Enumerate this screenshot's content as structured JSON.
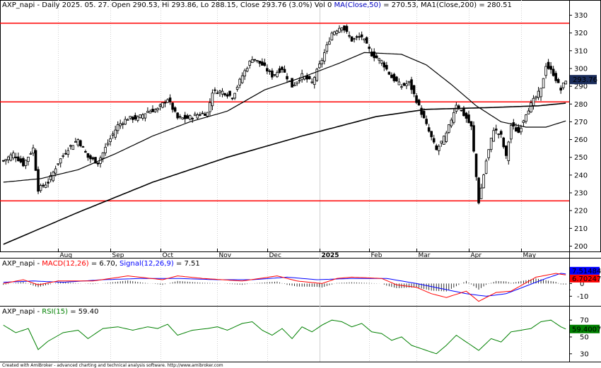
{
  "chart_data": [
    {
      "type": "candlestick",
      "header": {
        "symbol": "AXP_napi",
        "interval": "Daily",
        "date": "2025. 05. 27.",
        "open_label": "Open",
        "open": "290.53",
        "hi_label": "Hi",
        "hi": "293.86",
        "lo_label": "Lo",
        "lo": "288.15",
        "close_label": "Close",
        "close": "293.76",
        "change": "(3.0%)",
        "vol_label": "Vol",
        "vol": "0",
        "ma1_label": "MA(Close,50)",
        "ma1_value": "270.53",
        "ma2_label": "MA1(Close,200)",
        "ma2_value": "280.51"
      },
      "ylim": [
        197,
        333
      ],
      "y_ticks": [
        "200",
        "210",
        "220",
        "230",
        "240",
        "250",
        "260",
        "270",
        "280",
        "290",
        "300",
        "310",
        "320",
        "330"
      ],
      "last_price_label": "293.76",
      "horizontal_lines": [
        325.5,
        281.2,
        225.5
      ],
      "months": [
        {
          "label": "Aug",
          "bar": 22
        },
        {
          "label": "Sep",
          "bar": 43
        },
        {
          "label": "Oct",
          "bar": 63
        },
        {
          "label": "Nov",
          "bar": 86
        },
        {
          "label": "Dec",
          "bar": 106
        },
        {
          "label": "2025",
          "bar": 127,
          "bold": true
        },
        {
          "label": "Feb",
          "bar": 147
        },
        {
          "label": "Mar",
          "bar": 166
        },
        {
          "label": "Apr",
          "bar": 187
        },
        {
          "label": "May",
          "bar": 208
        }
      ],
      "close_anchors": [
        [
          0,
          248
        ],
        [
          4,
          252
        ],
        [
          8,
          246
        ],
        [
          12,
          255
        ],
        [
          14,
          232
        ],
        [
          18,
          236
        ],
        [
          22,
          247
        ],
        [
          26,
          255
        ],
        [
          30,
          260
        ],
        [
          34,
          250
        ],
        [
          38,
          247
        ],
        [
          42,
          258
        ],
        [
          46,
          268
        ],
        [
          50,
          272
        ],
        [
          54,
          272
        ],
        [
          58,
          276
        ],
        [
          62,
          277
        ],
        [
          66,
          283
        ],
        [
          70,
          272
        ],
        [
          74,
          272
        ],
        [
          78,
          274
        ],
        [
          82,
          275
        ],
        [
          84,
          287
        ],
        [
          88,
          287
        ],
        [
          92,
          284
        ],
        [
          96,
          296
        ],
        [
          100,
          306
        ],
        [
          104,
          302
        ],
        [
          108,
          296
        ],
        [
          112,
          300
        ],
        [
          116,
          290
        ],
        [
          120,
          296
        ],
        [
          124,
          292
        ],
        [
          128,
          305
        ],
        [
          132,
          320
        ],
        [
          136,
          324
        ],
        [
          140,
          316
        ],
        [
          144,
          318
        ],
        [
          148,
          308
        ],
        [
          152,
          304
        ],
        [
          156,
          295
        ],
        [
          160,
          290
        ],
        [
          163,
          292
        ],
        [
          166,
          282
        ],
        [
          170,
          268
        ],
        [
          174,
          254
        ],
        [
          178,
          263
        ],
        [
          182,
          280
        ],
        [
          186,
          272
        ],
        [
          188,
          267
        ],
        [
          191,
          225
        ],
        [
          194,
          248
        ],
        [
          197,
          266
        ],
        [
          200,
          262
        ],
        [
          202,
          250
        ],
        [
          204,
          268
        ],
        [
          207,
          264
        ],
        [
          210,
          275
        ],
        [
          213,
          282
        ],
        [
          216,
          288
        ],
        [
          218,
          302
        ],
        [
          221,
          297
        ],
        [
          224,
          288
        ],
        [
          226,
          293.76
        ]
      ],
      "ma50": [
        [
          0,
          236
        ],
        [
          15,
          238
        ],
        [
          30,
          243
        ],
        [
          45,
          252
        ],
        [
          60,
          262
        ],
        [
          75,
          270
        ],
        [
          90,
          276
        ],
        [
          105,
          288
        ],
        [
          120,
          295
        ],
        [
          135,
          303
        ],
        [
          145,
          309
        ],
        [
          160,
          308
        ],
        [
          170,
          302
        ],
        [
          180,
          291
        ],
        [
          190,
          279
        ],
        [
          200,
          270
        ],
        [
          210,
          267
        ],
        [
          218,
          267
        ],
        [
          226,
          270.5
        ]
      ],
      "ma200": [
        [
          0,
          201
        ],
        [
          30,
          219
        ],
        [
          60,
          236
        ],
        [
          90,
          250
        ],
        [
          120,
          262
        ],
        [
          150,
          273
        ],
        [
          170,
          277
        ],
        [
          195,
          278
        ],
        [
          215,
          279
        ],
        [
          226,
          280.5
        ]
      ]
    },
    {
      "type": "line",
      "header": {
        "symbol": "AXP_napi",
        "macd_label": "MACD(12,26)",
        "macd_value": "6.70",
        "signal_label": "Signal(12,26,9)",
        "signal_value": "7.51"
      },
      "ylim": [
        -17,
        13
      ],
      "y_ticks": [
        "10",
        "0",
        "-10"
      ],
      "tick_values": [
        10,
        5,
        0,
        -5,
        -10
      ],
      "last_labels": {
        "signal": "7.51484",
        "macd": "6.70247"
      },
      "series": [
        {
          "name": "MACD(12,26)",
          "color": "#ff0000",
          "anchors": [
            [
              0,
              0
            ],
            [
              8,
              3
            ],
            [
              14,
              -1
            ],
            [
              22,
              2
            ],
            [
              36,
              2
            ],
            [
              50,
              6
            ],
            [
              64,
              3
            ],
            [
              70,
              6
            ],
            [
              80,
              4
            ],
            [
              96,
              2
            ],
            [
              110,
              6
            ],
            [
              118,
              2
            ],
            [
              128,
              0
            ],
            [
              134,
              4
            ],
            [
              140,
              5
            ],
            [
              152,
              4
            ],
            [
              158,
              -1
            ],
            [
              166,
              -3
            ],
            [
              172,
              -8
            ],
            [
              178,
              -11
            ],
            [
              186,
              -6
            ],
            [
              191,
              -14
            ],
            [
              198,
              -7
            ],
            [
              204,
              -6
            ],
            [
              214,
              5
            ],
            [
              222,
              8
            ],
            [
              226,
              6.7
            ]
          ]
        },
        {
          "name": "Signal(12,26,9)",
          "color": "#0000ff",
          "anchors": [
            [
              0,
              1
            ],
            [
              12,
              2
            ],
            [
              24,
              1
            ],
            [
              40,
              3
            ],
            [
              56,
              4
            ],
            [
              70,
              4
            ],
            [
              86,
              3
            ],
            [
              100,
              3
            ],
            [
              114,
              5
            ],
            [
              126,
              3
            ],
            [
              140,
              4
            ],
            [
              154,
              4
            ],
            [
              166,
              0
            ],
            [
              176,
              -4
            ],
            [
              186,
              -8
            ],
            [
              194,
              -10
            ],
            [
              202,
              -8
            ],
            [
              210,
              -2
            ],
            [
              218,
              4
            ],
            [
              224,
              8
            ],
            [
              226,
              7.5
            ]
          ]
        }
      ]
    },
    {
      "type": "line",
      "header": {
        "symbol": "AXP_napi",
        "rsi_label": "RSI(15)",
        "rsi_value": "59.40"
      },
      "ylim": [
        24,
        76
      ],
      "y_ticks": [
        "70",
        "50",
        "30"
      ],
      "last_label": "59.4007",
      "series": [
        {
          "name": "RSI(15)",
          "color": "#008000",
          "anchors": [
            [
              0,
              64
            ],
            [
              5,
              55
            ],
            [
              10,
              60
            ],
            [
              14,
              35
            ],
            [
              18,
              45
            ],
            [
              24,
              55
            ],
            [
              30,
              58
            ],
            [
              34,
              48
            ],
            [
              40,
              60
            ],
            [
              46,
              62
            ],
            [
              52,
              58
            ],
            [
              58,
              62
            ],
            [
              62,
              60
            ],
            [
              66,
              65
            ],
            [
              70,
              52
            ],
            [
              76,
              58
            ],
            [
              82,
              60
            ],
            [
              86,
              62
            ],
            [
              90,
              58
            ],
            [
              96,
              66
            ],
            [
              100,
              68
            ],
            [
              104,
              58
            ],
            [
              108,
              52
            ],
            [
              112,
              60
            ],
            [
              116,
              48
            ],
            [
              120,
              62
            ],
            [
              124,
              56
            ],
            [
              128,
              64
            ],
            [
              132,
              70
            ],
            [
              136,
              68
            ],
            [
              140,
              62
            ],
            [
              144,
              66
            ],
            [
              148,
              56
            ],
            [
              152,
              54
            ],
            [
              156,
              46
            ],
            [
              160,
              50
            ],
            [
              164,
              40
            ],
            [
              170,
              34
            ],
            [
              174,
              30
            ],
            [
              178,
              40
            ],
            [
              182,
              52
            ],
            [
              186,
              44
            ],
            [
              191,
              34
            ],
            [
              196,
              48
            ],
            [
              200,
              44
            ],
            [
              204,
              56
            ],
            [
              208,
              58
            ],
            [
              212,
              60
            ],
            [
              216,
              68
            ],
            [
              220,
              70
            ],
            [
              224,
              62
            ],
            [
              226,
              59.4
            ]
          ]
        }
      ]
    }
  ],
  "credit": "Created with AmiBroker - advanced charting and technical analysis software. http://www.amibroker.com",
  "colors": {
    "up": "#ffffff",
    "down": "#000000",
    "hline": "#ff0000",
    "grid": "#d0d0d0",
    "price_tag": "#1a2c5a"
  }
}
